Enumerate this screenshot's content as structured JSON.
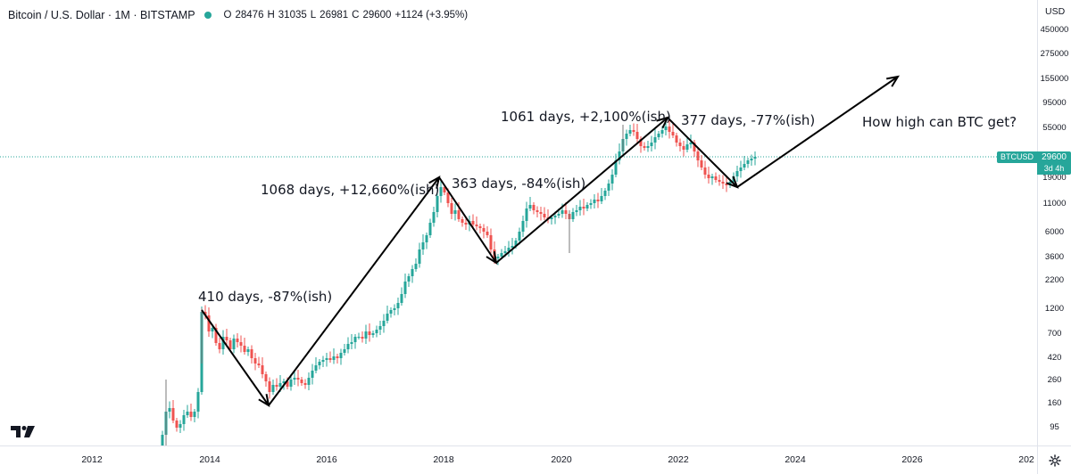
{
  "legend": {
    "title": "Bitcoin / U.S. Dollar · 1M · BITSTAMP",
    "status_color": "#26a69a",
    "open_label": "O",
    "open_value": "28476",
    "high_label": "H",
    "high_value": "31035",
    "low_label": "L",
    "low_value": "26981",
    "close_label": "C",
    "close_value": "29600",
    "change": "+1124 (+3.95%)"
  },
  "price_axis": {
    "currency": "USD",
    "ticks": [
      "450000",
      "275000",
      "155000",
      "95000",
      "55000",
      "19000",
      "11000",
      "6000",
      "3600",
      "2200",
      "1200",
      "700",
      "420",
      "260",
      "160",
      "95"
    ],
    "symbol": "BTCUSD",
    "last_price": "29600",
    "countdown": "3d 4h"
  },
  "time_axis": {
    "ticks": [
      "2012",
      "2014",
      "2016",
      "2018",
      "2020",
      "2022",
      "2024",
      "2026",
      "202"
    ],
    "settings_icon": "gear-icon"
  },
  "logo": "tradingview-logo-icon",
  "colors": {
    "up": "#26a69a",
    "down": "#ef5350",
    "annotation": "#000000",
    "last_price_line": "#26a69a"
  },
  "annotations": {
    "drop_2014": "410 days, -87%(ish)",
    "rise_2015_2017": "1068 days, +12,660%(ish)",
    "drop_2018": "363 days, -84%(ish)",
    "rise_2019_2021": "1061 days, +2,100%(ish)",
    "drop_2022": "377 days, -77%(ish)",
    "question": "How high can BTC get?"
  }
}
